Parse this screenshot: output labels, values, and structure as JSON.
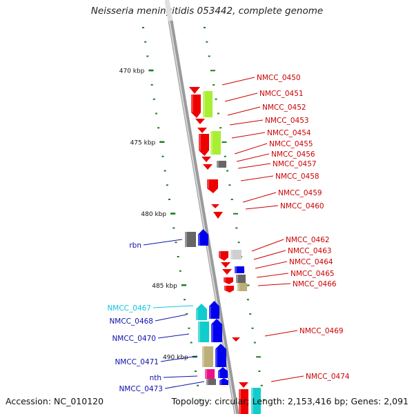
{
  "title": "Neisseria meningitidis 053442, complete genome",
  "footer": {
    "accession": "Accession: NC_010120",
    "topology": "Topology: circular; Length: 2,153,416 bp; Genes: 2,091"
  },
  "ticks": [
    {
      "label": "470 kbp",
      "kbp": 470
    },
    {
      "label": "475 kbp",
      "kbp": 475
    },
    {
      "label": "480 kbp",
      "kbp": 480
    },
    {
      "label": "485 kbp",
      "kbp": 485
    },
    {
      "label": "490 kbp",
      "kbp": 490
    }
  ],
  "colors": {
    "backbone": "#9a9a9a",
    "tick": "#1e7a1e",
    "forward_label": "#cc0000",
    "reverse_label": "#1010aa",
    "cyan_label": "#11c4e0",
    "red": "#ee0000",
    "lime": "#aaee33",
    "blue": "#0000ee",
    "cyan": "#11cccc",
    "gray": "#666666",
    "tan": "#bbb077",
    "pink": "#ee1188"
  },
  "right_labels": [
    "NMCC_0450",
    "NMCC_0451",
    "NMCC_0452",
    "NMCC_0453",
    "NMCC_0454",
    "NMCC_0455",
    "NMCC_0456",
    "NMCC_0457",
    "NMCC_0458",
    "NMCC_0459",
    "NMCC_0460",
    "NMCC_0462",
    "NMCC_0463",
    "NMCC_0464",
    "NMCC_0465",
    "NMCC_0466",
    "NMCC_0469",
    "NMCC_0474"
  ],
  "left_labels": [
    {
      "text": "rbn",
      "color": "blue"
    },
    {
      "text": "NMCC_0467",
      "color": "cyan"
    },
    {
      "text": "NMCC_0468",
      "color": "blue"
    },
    {
      "text": "NMCC_0470",
      "color": "blue"
    },
    {
      "text": "NMCC_0471",
      "color": "blue"
    },
    {
      "text": "nth",
      "color": "blue"
    },
    {
      "text": "NMCC_0473",
      "color": "blue"
    }
  ]
}
